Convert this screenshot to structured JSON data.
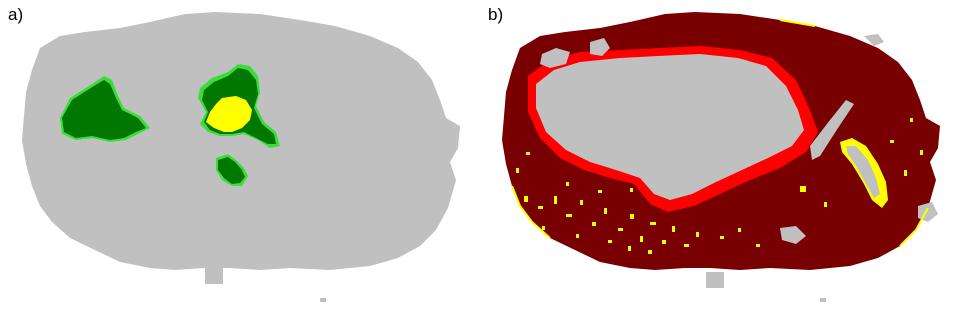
{
  "panels": [
    {
      "label": "a)"
    },
    {
      "label": "b)"
    }
  ],
  "colors": {
    "land": "#c0c0c0",
    "dark_green": "#007800",
    "light_green": "#3cdc3c",
    "yellow": "#ffff00",
    "dark_red": "#780000",
    "red": "#ff0000"
  }
}
